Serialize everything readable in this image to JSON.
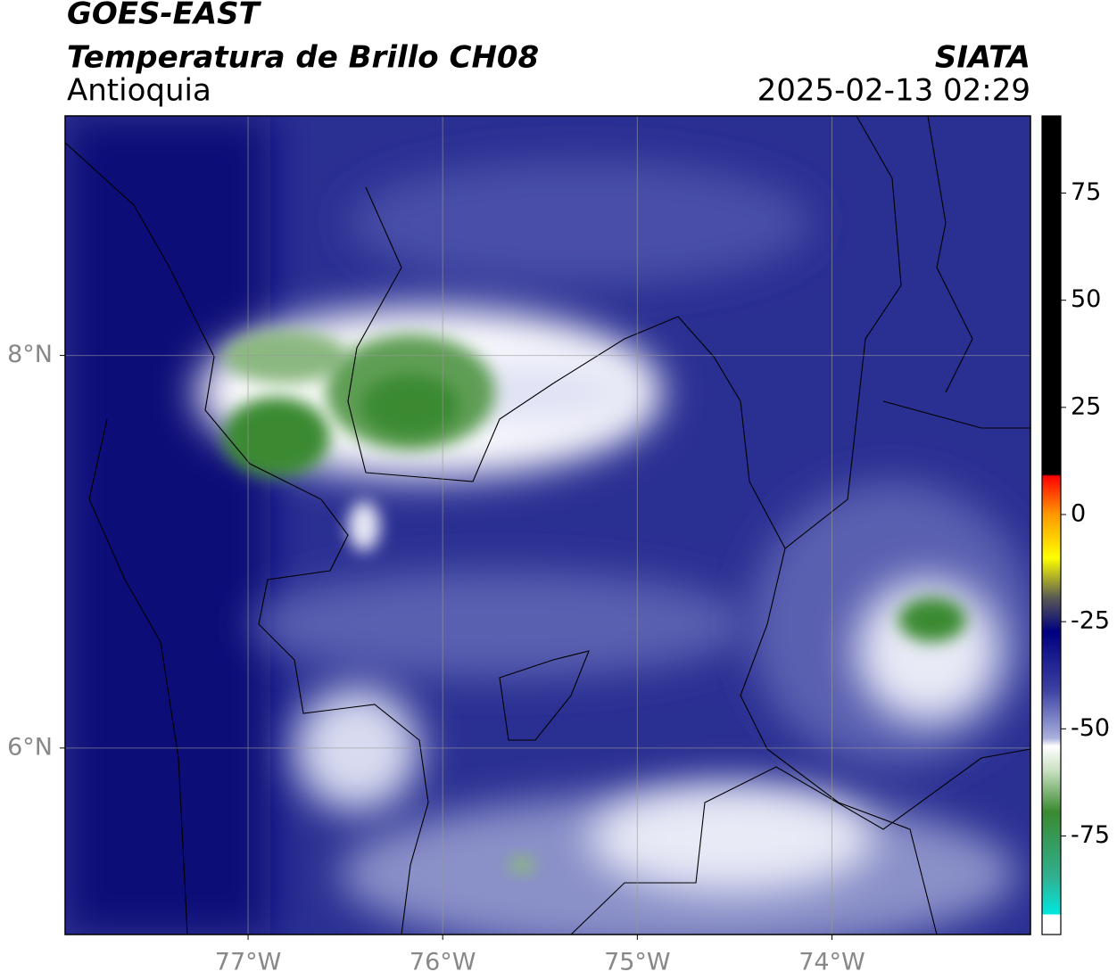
{
  "header": {
    "title": "GOES-EAST",
    "subtitle": "Temperatura de Brillo CH08",
    "region": "Antioquia",
    "source": "SIATA",
    "datetime": "2025-02-13 02:29"
  },
  "map": {
    "xlim": [
      -77.94,
      -72.98
    ],
    "ylim": [
      5.05,
      9.22
    ],
    "xticks": [
      {
        "value": -77,
        "label": "77°W"
      },
      {
        "value": -76,
        "label": "76°W"
      },
      {
        "value": -75,
        "label": "75°W"
      },
      {
        "value": -74,
        "label": "74°W"
      }
    ],
    "yticks": [
      {
        "value": 6,
        "label": "6°N"
      },
      {
        "value": 8,
        "label": "8°N"
      }
    ],
    "grid": true
  },
  "colorbar": {
    "lim": [
      -98,
      93
    ],
    "ticks": [
      75,
      50,
      25,
      0,
      -25,
      -50,
      -75
    ]
  }
}
